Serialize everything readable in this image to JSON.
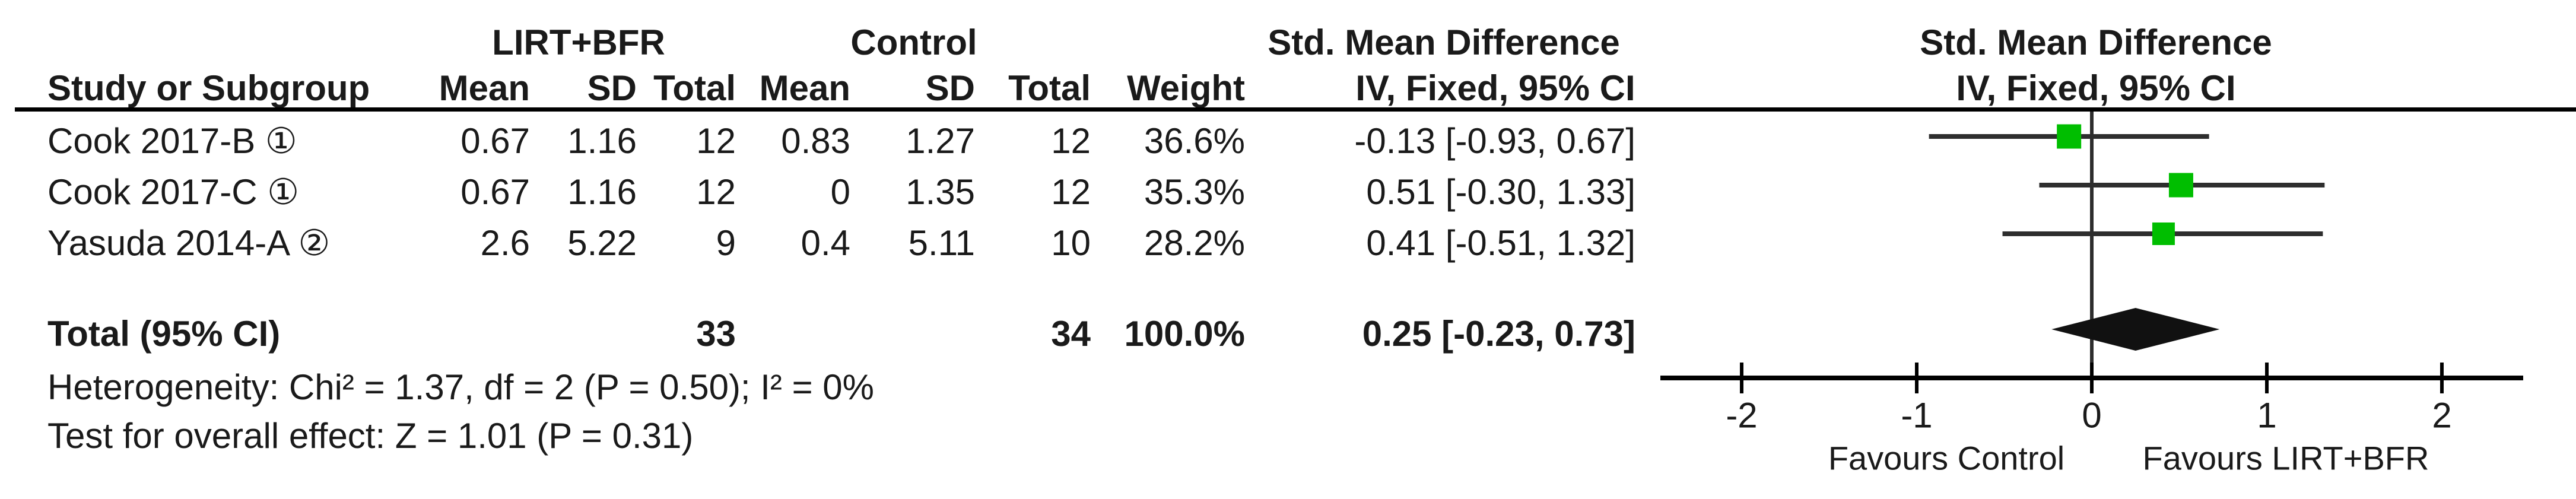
{
  "table": {
    "group1_label": "LIRT+BFR",
    "group2_label": "Control",
    "smd_header": "Std. Mean Difference",
    "method_header": "IV, Fixed, 95% CI",
    "plot_title": "Std. Mean Difference",
    "plot_subtitle": "IV, Fixed, 95% CI",
    "col_headers": {
      "study": "Study or Subgroup",
      "mean": "Mean",
      "sd": "SD",
      "total": "Total",
      "weight": "Weight"
    },
    "rows": [
      {
        "study": "Cook 2017-B ①",
        "mean1": "0.67",
        "sd1": "1.16",
        "total1": "12",
        "mean2": "0.83",
        "sd2": "1.27",
        "total2": "12",
        "weight": "36.6%",
        "ci": "-0.13 [-0.93, 0.67]"
      },
      {
        "study": "Cook 2017-C ①",
        "mean1": "0.67",
        "sd1": "1.16",
        "total1": "12",
        "mean2": "0",
        "sd2": "1.35",
        "total2": "12",
        "weight": "35.3%",
        "ci": "0.51 [-0.30, 1.33]"
      },
      {
        "study": "Yasuda 2014-A ②",
        "mean1": "2.6",
        "sd1": "5.22",
        "total1": "9",
        "mean2": "0.4",
        "sd2": "5.11",
        "total2": "10",
        "weight": "28.2%",
        "ci": "0.41 [-0.51, 1.32]"
      }
    ],
    "total_row": {
      "label": "Total (95% CI)",
      "total1": "33",
      "total2": "34",
      "weight": "100.0%",
      "ci": "0.25 [-0.23, 0.73]"
    },
    "heterogeneity": "Heterogeneity: Chi² = 1.37, df = 2 (P = 0.50); I² = 0%",
    "overall_effect": "Test for overall effect: Z = 1.01 (P = 0.31)"
  },
  "chart_data": {
    "type": "forest",
    "title": "Std. Mean Difference",
    "method": "IV, Fixed, 95% CI",
    "effect_measure": "Std. Mean Difference",
    "model": "Fixed",
    "axis": {
      "xlim": [
        -2.5,
        2.45
      ],
      "ticks": [
        -2,
        -1,
        0,
        1,
        2
      ],
      "left_label": "Favours Control",
      "right_label": "Favours LIRT+BFR"
    },
    "studies": [
      {
        "label": "Cook 2017-B ①",
        "est": -0.13,
        "lo": -0.93,
        "hi": 0.67,
        "weight_pct": 36.6
      },
      {
        "label": "Cook 2017-C ①",
        "est": 0.51,
        "lo": -0.3,
        "hi": 1.33,
        "weight_pct": 35.3
      },
      {
        "label": "Yasuda 2014-A ②",
        "est": 0.41,
        "lo": -0.51,
        "hi": 1.32,
        "weight_pct": 28.2
      }
    ],
    "overall": {
      "label": "Total (95% CI)",
      "est": 0.25,
      "lo": -0.23,
      "hi": 0.73
    },
    "heterogeneity": {
      "chi2": 1.37,
      "df": 2,
      "p": 0.5,
      "i2_pct": 0
    },
    "overall_test": {
      "z": 1.01,
      "p": 0.31
    },
    "colors": {
      "marker": "#00BE00",
      "diamond": "#111111",
      "line": "#2e2e2e",
      "axis": "#000000"
    }
  }
}
